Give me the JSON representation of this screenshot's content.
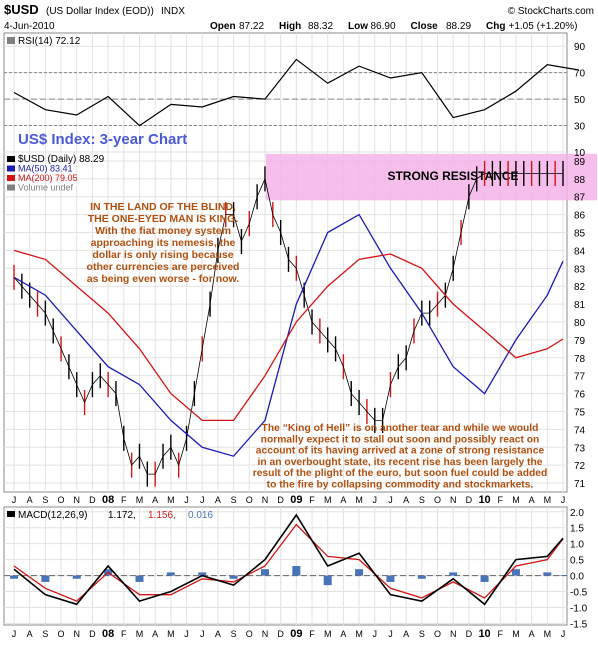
{
  "header": {
    "symbol": "$USD",
    "name": "(US Dollar Index (EOD))",
    "exchange": "INDX",
    "copyright": "© StockCharts.com",
    "date": "4-Jun-2010",
    "ohlc": [
      {
        "label": "Open",
        "value": "87.22"
      },
      {
        "label": "High",
        "value": "88.32"
      },
      {
        "label": "Low",
        "value": "86.90"
      },
      {
        "label": "Close",
        "value": "88.29"
      },
      {
        "label": "Chg",
        "value": "+1.05 (+1.20%)"
      }
    ]
  },
  "chart_data": [
    {
      "type": "line",
      "panel": "rsi",
      "legend": "RSI(14) 72.12",
      "ylim": [
        10,
        100
      ],
      "yticks": [
        "90",
        "70",
        "50",
        "30",
        "10"
      ],
      "overbought": 70,
      "oversold": 30,
      "title": "US$ Index: 3-year Chart",
      "series": [
        {
          "name": "RSI(14)",
          "x": [
            0,
            2,
            4,
            6,
            8,
            10,
            12,
            14,
            16,
            18,
            20,
            22,
            24,
            26,
            28,
            30,
            32,
            34,
            36
          ],
          "values": [
            55,
            42,
            38,
            52,
            30,
            46,
            44,
            52,
            50,
            80,
            62,
            75,
            66,
            70,
            36,
            42,
            56,
            76,
            72
          ]
        }
      ]
    },
    {
      "type": "line",
      "panel": "price",
      "legend": [
        {
          "label": "$USD (Daily) 88.29",
          "color": "#000000"
        },
        {
          "label": "MA(50) 83.41",
          "color": "#1a1ab4"
        },
        {
          "label": "MA(200) 79.05",
          "color": "#d21414"
        },
        {
          "label": "Volume undef",
          "color": "#808080"
        }
      ],
      "ylim": [
        70.5,
        89.5
      ],
      "yticks": [
        89,
        88,
        87,
        86,
        85,
        84,
        83,
        82,
        81,
        80,
        79,
        78,
        77,
        76,
        75,
        74,
        73,
        72,
        71
      ],
      "x_labels": [
        "J",
        "A",
        "S",
        "O",
        "N",
        "D",
        "08",
        "F",
        "M",
        "A",
        "M",
        "J",
        "J",
        "A",
        "S",
        "O",
        "N",
        "D",
        "09",
        "F",
        "M",
        "A",
        "M",
        "J",
        "J",
        "A",
        "S",
        "O",
        "N",
        "D",
        "10",
        "F",
        "M",
        "A",
        "M",
        "J"
      ],
      "x_label_bold": [
        "08",
        "09",
        "10"
      ],
      "resistance_zone": {
        "low": 86.8,
        "high": 89.4,
        "label": "STRONG RESISTANCE",
        "color": "#f4b4e8"
      },
      "annotations": [
        {
          "id": "note_top",
          "color": "#b05010",
          "lines": [
            "IN THE LAND OF THE BLIND,",
            "THE ONE-EYED MAN IS KING.",
            "With the fiat money system",
            "approaching its nemesis, the",
            "dollar is only rising because",
            "other currencies are perceived",
            "as being even worse - for now."
          ]
        },
        {
          "id": "note_bottom",
          "color": "#b05010",
          "lines": [
            "The “King of Hell” is on another tear and while we would",
            "normally expect it to stall out soon and possibly react on",
            "account of its having arrived at a zone of strong resistance",
            "in an overbought state, its recent rise has been largely the",
            "result of the plight of the euro, but soon fuel could be added",
            "to the fire by collapsing commodity and stockmarkets."
          ]
        }
      ],
      "series": [
        {
          "name": "$USD (Daily)",
          "color": "#000000",
          "x": [
            0,
            0.5,
            1,
            1.5,
            2,
            2.5,
            3,
            3.5,
            4,
            4.5,
            5,
            5.5,
            6,
            6.5,
            7,
            7.5,
            8,
            8.5,
            9,
            9.5,
            10,
            10.5,
            11,
            11.5,
            12,
            12.5,
            13,
            13.5,
            14,
            14.5,
            15,
            15.5,
            16,
            16.5,
            17,
            17.5,
            18,
            18.5,
            19,
            19.5,
            20,
            20.5,
            21,
            21.5,
            22,
            22.5,
            23,
            23.5,
            24,
            24.5,
            25,
            25.5,
            26,
            26.5,
            27,
            27.5,
            28,
            28.5,
            29,
            29.5,
            30,
            30.5,
            31,
            31.5,
            32,
            32.5,
            33,
            33.5,
            34,
            34.5,
            35
          ],
          "values": [
            82.5,
            82.0,
            81.5,
            81.0,
            80.5,
            79.5,
            78.5,
            77.5,
            76.5,
            75.5,
            76.5,
            77.0,
            76.5,
            76.0,
            73.5,
            72.0,
            72.5,
            71.5,
            71.5,
            72.5,
            73.0,
            72.0,
            73.5,
            76.0,
            78.5,
            81.0,
            84.0,
            86.0,
            86.0,
            84.5,
            85.5,
            87.0,
            88.0,
            86.0,
            85.0,
            83.5,
            83.0,
            81.5,
            80.0,
            79.5,
            79.0,
            78.5,
            77.5,
            76.0,
            75.5,
            75.0,
            74.5,
            74.5,
            76.5,
            77.5,
            78.0,
            79.5,
            80.5,
            80.5,
            81.0,
            81.5,
            83.0,
            85.0,
            87.0,
            88.0,
            88.3,
            88.3,
            88.3,
            88.3,
            88.3,
            88.3,
            88.3,
            88.3,
            88.3,
            88.3,
            88.3
          ]
        },
        {
          "name": "MA(50)",
          "color": "#1a1ab4",
          "x": [
            0,
            2,
            4,
            6,
            8,
            10,
            12,
            14,
            16,
            18,
            20,
            22,
            24,
            26,
            28,
            30,
            32,
            34,
            35
          ],
          "values": [
            82.5,
            81.5,
            79.5,
            77.5,
            76.5,
            74.5,
            73.0,
            72.5,
            74.5,
            81.0,
            85.0,
            86.0,
            83.0,
            80.5,
            77.5,
            76.0,
            79.0,
            81.5,
            83.4
          ]
        },
        {
          "name": "MA(200)",
          "color": "#d21414",
          "x": [
            0,
            2,
            4,
            6,
            8,
            10,
            12,
            14,
            16,
            18,
            20,
            22,
            24,
            26,
            28,
            30,
            32,
            34,
            35
          ],
          "values": [
            84.0,
            83.5,
            82.0,
            80.5,
            78.5,
            76.0,
            74.5,
            74.5,
            77.0,
            80.0,
            82.0,
            83.5,
            83.8,
            83.0,
            81.0,
            79.5,
            78.0,
            78.5,
            79.05
          ]
        }
      ]
    },
    {
      "type": "line",
      "panel": "macd",
      "legend": {
        "label": "MACD(12,26,9)",
        "macd": "1.172",
        "signal": "1.156",
        "hist": "0.016"
      },
      "ylim": [
        -1.55,
        2.15
      ],
      "yticks": [
        "2.0",
        "1.5",
        "1.0",
        "0.5",
        "0.0",
        "-0.5",
        "-1.0",
        "-1.5"
      ],
      "series": [
        {
          "name": "MACD",
          "color": "#000000",
          "x": [
            0,
            2,
            4,
            6,
            8,
            10,
            12,
            14,
            16,
            18,
            20,
            22,
            24,
            26,
            28,
            30,
            32,
            34,
            35
          ],
          "values": [
            0.2,
            -0.6,
            -0.9,
            0.3,
            -0.8,
            -0.5,
            0.0,
            -0.3,
            0.5,
            1.9,
            0.3,
            0.7,
            -0.6,
            -0.8,
            -0.1,
            -0.9,
            0.5,
            0.6,
            1.17
          ]
        },
        {
          "name": "Signal",
          "color": "#d21414",
          "x": [
            0,
            2,
            4,
            6,
            8,
            10,
            12,
            14,
            16,
            18,
            20,
            22,
            24,
            26,
            28,
            30,
            32,
            34,
            35
          ],
          "values": [
            0.3,
            -0.4,
            -0.8,
            0.1,
            -0.6,
            -0.6,
            -0.1,
            -0.2,
            0.3,
            1.6,
            0.6,
            0.5,
            -0.4,
            -0.7,
            -0.2,
            -0.7,
            0.3,
            0.5,
            1.156
          ]
        },
        {
          "name": "Histogram",
          "color": "#4a74b8",
          "x": [
            0,
            2,
            4,
            6,
            8,
            10,
            12,
            14,
            16,
            18,
            20,
            22,
            24,
            26,
            28,
            30,
            32,
            34,
            35
          ],
          "values": [
            -0.1,
            -0.2,
            -0.1,
            0.2,
            -0.2,
            0.1,
            0.1,
            -0.1,
            0.2,
            0.3,
            -0.3,
            0.2,
            -0.2,
            -0.1,
            0.1,
            -0.2,
            0.2,
            0.1,
            0.016
          ]
        }
      ],
      "x_labels": [
        "J",
        "A",
        "S",
        "O",
        "N",
        "D",
        "08",
        "F",
        "M",
        "A",
        "M",
        "J",
        "J",
        "A",
        "S",
        "O",
        "N",
        "D",
        "09",
        "F",
        "M",
        "A",
        "M",
        "J",
        "J",
        "A",
        "S",
        "O",
        "N",
        "D",
        "10",
        "F",
        "M",
        "A",
        "M",
        "J"
      ],
      "x_label_bold": [
        "08",
        "09",
        "10"
      ]
    }
  ]
}
